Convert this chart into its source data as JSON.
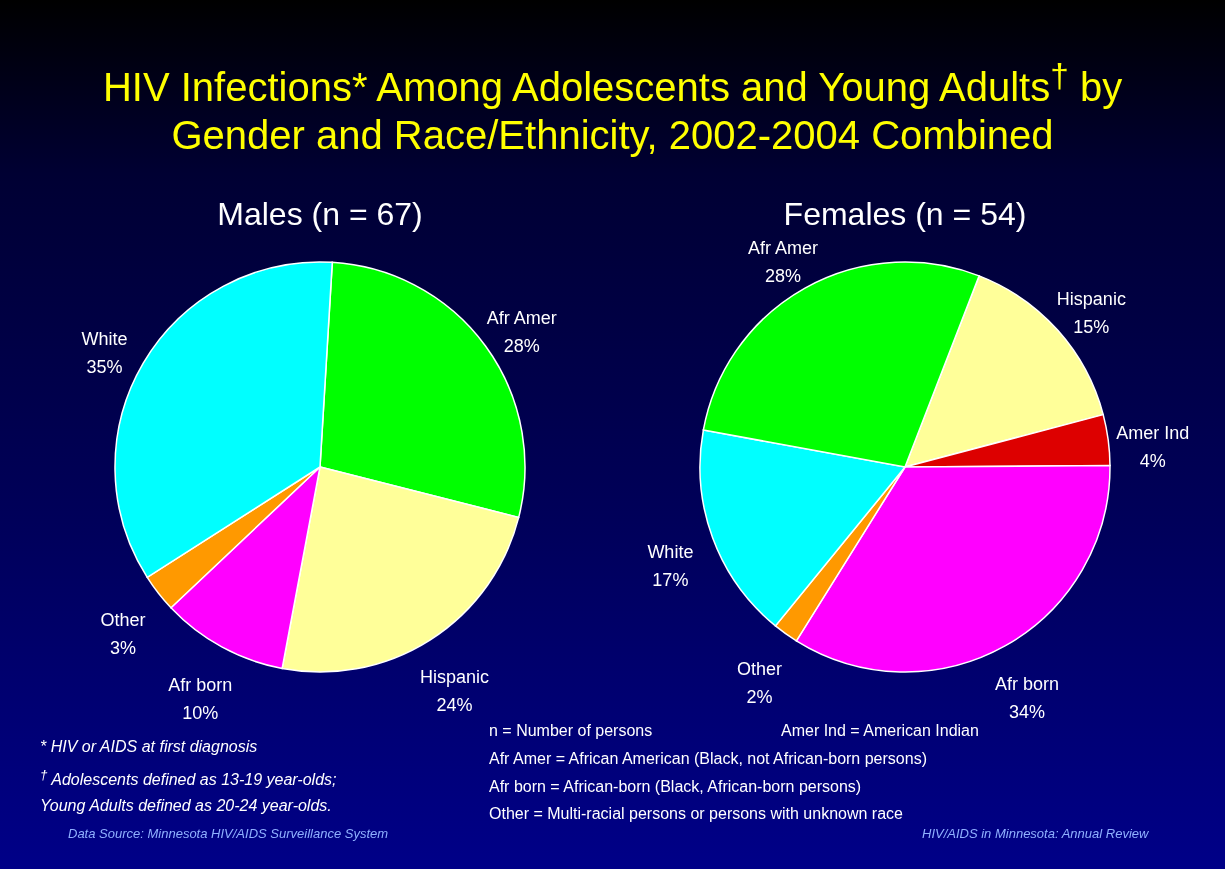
{
  "chart_data": [
    {
      "type": "pie",
      "title": "HIV Infections* Among Adolescents and Young Adults$^{†}$ by Gender and Race/Ethnicity, 2002-2004 Combined",
      "subtitle": "Males (n = 67)",
      "categories": [
        "Afr Amer",
        "Hispanic",
        "Afr born",
        "Other",
        "White"
      ],
      "values": [
        28,
        24,
        10,
        3,
        35
      ],
      "value_labels": [
        "28%",
        "24%",
        "10%",
        "3%",
        "35%"
      ],
      "colors": [
        "#00ff00",
        "#ffff99",
        "#ff00ff",
        "#ff9900",
        "#00ffff"
      ],
      "annotations": [
        "* HIV or AIDS at first diagnosis",
        "$^{†}$ Adolescents defined as 13-19 year-olds;",
        "Young Adults defined as 20-24 year-olds.",
        "Data Source: Minnesota HIV/AIDS Surveillance System"
      ]
    },
    {
      "type": "pie",
      "subtitle": "Females (n = 54)",
      "categories": [
        "Hispanic",
        "Amer Ind",
        "Afr born",
        "Other",
        "White",
        "Afr Amer"
      ],
      "values": [
        15,
        4,
        34,
        2,
        17,
        28
      ],
      "value_labels": [
        "15%",
        "4%",
        "34%",
        "2%",
        "17%",
        "28%"
      ],
      "colors": [
        "#ffff99",
        "#dd0000",
        "#ff00ff",
        "#ff9900",
        "#00ffff",
        "#00ff00"
      ],
      "annotations": [
        "n = Number of persons",
        "Amer Ind = American Indian",
        "Afr Amer = African American (Black, not African-born persons)",
        "Afr born = African-born (Black, African-born persons)",
        "Other = Multi-racial persons or persons with unknown race",
        "HIV/AIDS in Minnesota: Annual Review"
      ]
    }
  ]
}
